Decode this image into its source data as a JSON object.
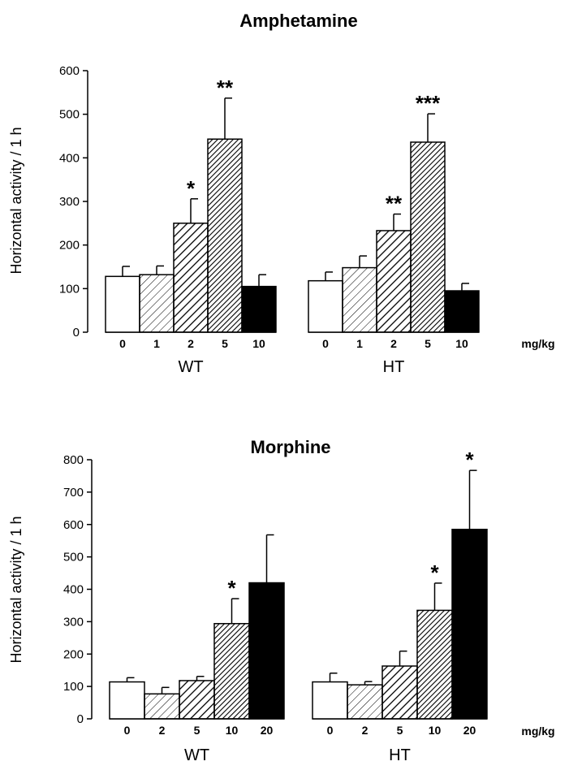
{
  "colors": {
    "ink": "#000000",
    "paper": "#ffffff"
  },
  "chart_data": [
    {
      "type": "bar",
      "title": "Amphetamine",
      "ylabel": "Horizontal activity / 1 h",
      "xlabel": "mg/kg",
      "ylim": [
        0,
        600
      ],
      "yticks": [
        0,
        100,
        200,
        300,
        400,
        500,
        600
      ],
      "categories": [
        "0",
        "1",
        "2",
        "5",
        "10"
      ],
      "groups": [
        {
          "name": "WT",
          "values": [
            128,
            132,
            250,
            443,
            105
          ],
          "errors": [
            23,
            20,
            56,
            94,
            27
          ],
          "significance": [
            "",
            "",
            "*",
            "**",
            ""
          ]
        },
        {
          "name": "HT",
          "values": [
            118,
            148,
            233,
            436,
            95
          ],
          "errors": [
            20,
            27,
            38,
            65,
            17
          ],
          "significance": [
            "",
            "",
            "**",
            "***",
            ""
          ]
        }
      ]
    },
    {
      "type": "bar",
      "title": "Morphine",
      "ylabel": "Horizontal activity / 1 h",
      "xlabel": "mg/kg",
      "ylim": [
        0,
        800
      ],
      "yticks": [
        0,
        100,
        200,
        300,
        400,
        500,
        600,
        700,
        800
      ],
      "categories": [
        "0",
        "2",
        "5",
        "10",
        "20"
      ],
      "groups": [
        {
          "name": "WT",
          "values": [
            114,
            77,
            118,
            294,
            420
          ],
          "errors": [
            13,
            20,
            13,
            77,
            148
          ],
          "significance": [
            "",
            "",
            "",
            "*",
            ""
          ]
        },
        {
          "name": "HT",
          "values": [
            114,
            105,
            163,
            335,
            585
          ],
          "errors": [
            27,
            10,
            46,
            84,
            182
          ],
          "significance": [
            "",
            "",
            "",
            "*",
            "*"
          ]
        }
      ]
    }
  ]
}
